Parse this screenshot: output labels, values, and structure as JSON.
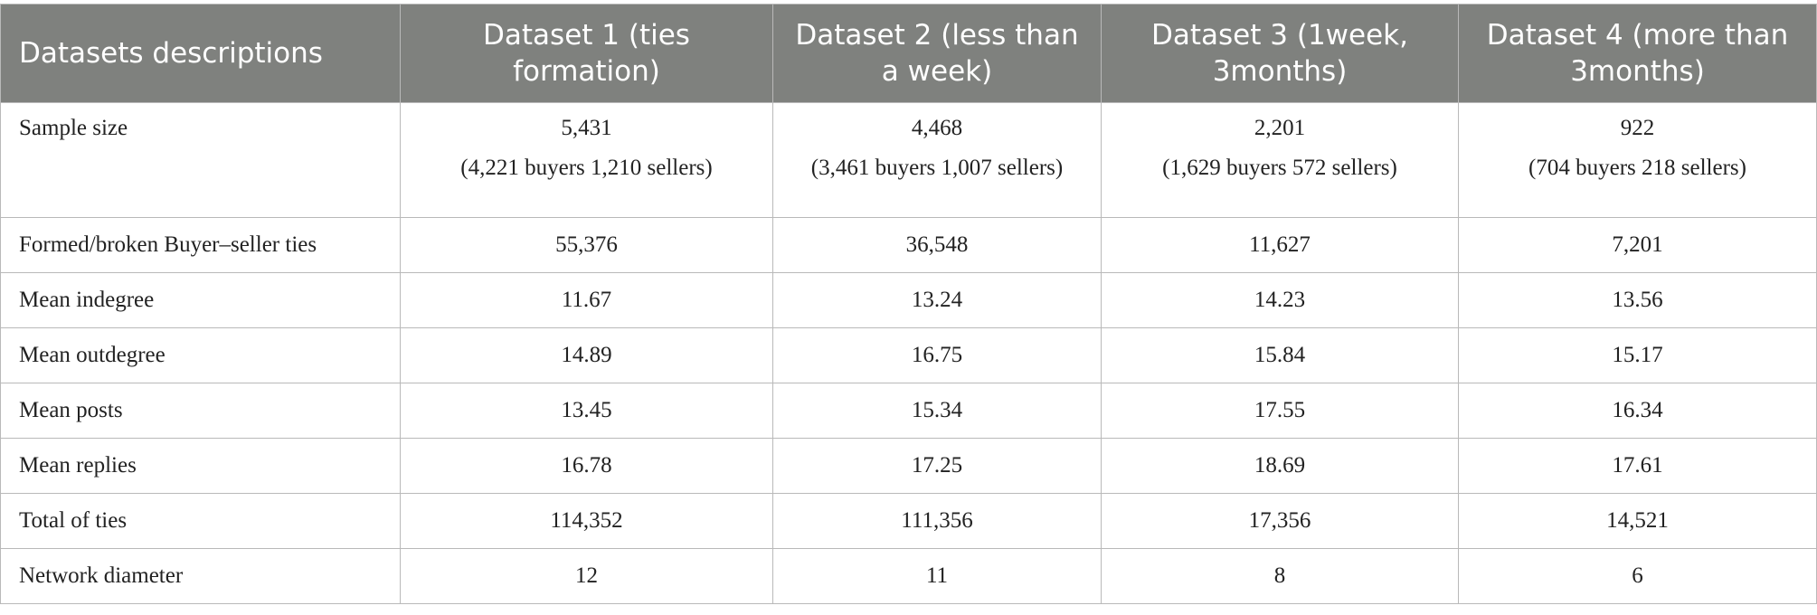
{
  "table": {
    "header": [
      "Datasets descriptions",
      "Dataset 1 (ties formation)",
      "Dataset 2 (less than a week)",
      "Dataset 3 (1week, 3months)",
      "Dataset 4 (more than 3months)"
    ],
    "rows": [
      [
        "Sample size",
        [
          "5,431",
          "(4,221 buyers 1,210 sellers)"
        ],
        [
          "4,468",
          "(3,461 buyers 1,007 sellers)"
        ],
        [
          "2,201",
          "(1,629 buyers 572 sellers)"
        ],
        [
          "922",
          "(704 buyers 218 sellers)"
        ]
      ],
      [
        "Formed/broken Buyer–seller ties",
        "55,376",
        "36,548",
        "11,627",
        "7,201"
      ],
      [
        "Mean indegree",
        "11.67",
        "13.24",
        "14.23",
        "13.56"
      ],
      [
        "Mean outdegree",
        "14.89",
        "16.75",
        "15.84",
        "15.17"
      ],
      [
        "Mean posts",
        "13.45",
        "15.34",
        "17.55",
        "16.34"
      ],
      [
        "Mean replies",
        "16.78",
        "17.25",
        "18.69",
        "17.61"
      ],
      [
        "Total of ties",
        "114,352",
        "111,356",
        "17,356",
        "14,521"
      ],
      [
        "Network diameter",
        "12",
        "11",
        "8",
        "6"
      ]
    ]
  }
}
